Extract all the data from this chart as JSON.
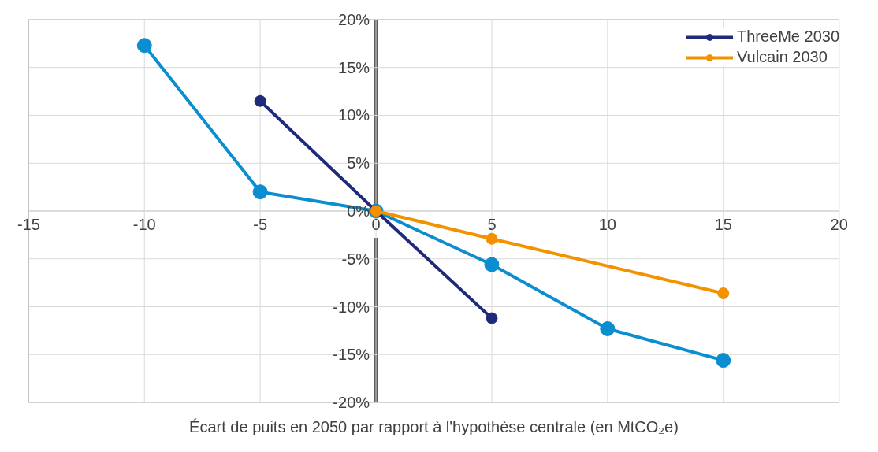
{
  "chart_data": {
    "type": "line",
    "xlabel": "Écart de puits en 2050 par rapport à l'hypothèse centrale (en MtCO₂e)",
    "xlim": [
      -15,
      20
    ],
    "xticks": [
      -15,
      -10,
      -5,
      0,
      5,
      10,
      15,
      20
    ],
    "ylim": [
      -20,
      20
    ],
    "yticks": [
      {
        "value": -20,
        "label": "-20%"
      },
      {
        "value": -15,
        "label": "-15%"
      },
      {
        "value": -10,
        "label": "-10%"
      },
      {
        "value": -5,
        "label": "-5%"
      },
      {
        "value": 0,
        "label": "0%"
      },
      {
        "value": 5,
        "label": "5%"
      },
      {
        "value": 10,
        "label": "10%"
      },
      {
        "value": 15,
        "label": "15%"
      },
      {
        "value": 20,
        "label": "20%"
      }
    ],
    "grid": true,
    "legend": "top right",
    "marker": "circle",
    "series": [
      {
        "color": "#0a8ed0",
        "x": [
          -10,
          -5,
          0,
          5,
          10,
          15
        ],
        "values": [
          17.3,
          2.0,
          0,
          -5.6,
          -12.3,
          -15.6
        ]
      },
      {
        "name": "ThreeMe 2030",
        "color": "#1f2a7a",
        "x": [
          -5,
          0,
          5
        ],
        "values": [
          11.5,
          0,
          -11.2
        ]
      },
      {
        "name": "Vulcain 2030",
        "color": "#f39200",
        "x": [
          0,
          5,
          15
        ],
        "values": [
          0,
          -2.9,
          -8.6
        ]
      }
    ]
  }
}
